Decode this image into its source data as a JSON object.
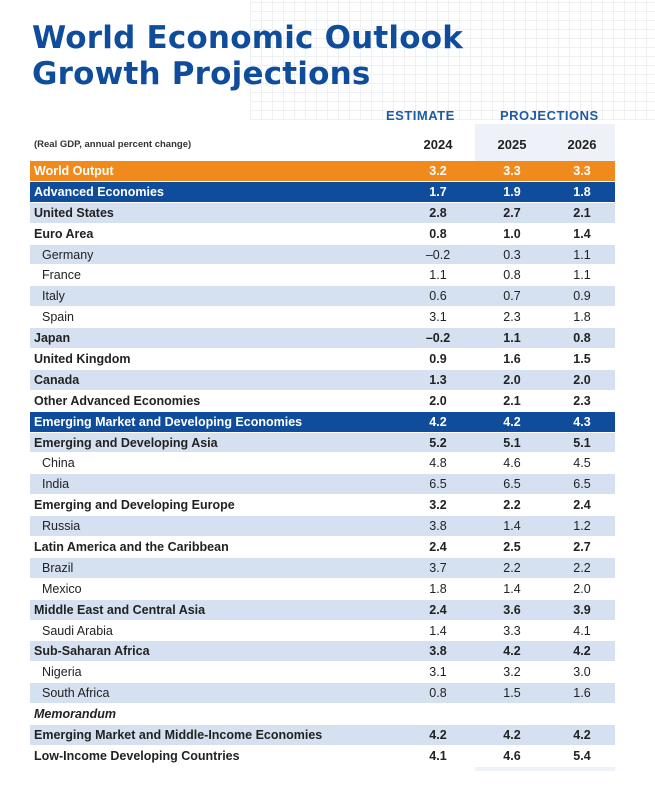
{
  "title": {
    "line1": "World Economic Outlook",
    "line2": "Growth Projections"
  },
  "header": {
    "estimate": "ESTIMATE",
    "projections": "PROJECTIONS",
    "subtitle": "(Real GDP, annual percent change)",
    "years": [
      "2024",
      "2025",
      "2026"
    ]
  },
  "rows": [
    {
      "label": "World Output",
      "style": "world",
      "values": [
        "3.2",
        "3.3",
        "3.3"
      ]
    },
    {
      "label": "Advanced Economies",
      "style": "group",
      "values": [
        "1.7",
        "1.9",
        "1.8"
      ]
    },
    {
      "label": "United States",
      "style": "light",
      "values": [
        "2.8",
        "2.7",
        "2.1"
      ]
    },
    {
      "label": "Euro Area",
      "style": "white",
      "values": [
        "0.8",
        "1.0",
        "1.4"
      ]
    },
    {
      "label": "Germany",
      "style": "light sub",
      "values": [
        "–0.2",
        "0.3",
        "1.1"
      ]
    },
    {
      "label": "France",
      "style": "white sub",
      "values": [
        "1.1",
        "0.8",
        "1.1"
      ]
    },
    {
      "label": "Italy",
      "style": "light sub",
      "values": [
        "0.6",
        "0.7",
        "0.9"
      ]
    },
    {
      "label": "Spain",
      "style": "white sub",
      "values": [
        "3.1",
        "2.3",
        "1.8"
      ]
    },
    {
      "label": "Japan",
      "style": "light",
      "values": [
        "–0.2",
        "1.1",
        "0.8"
      ]
    },
    {
      "label": "United Kingdom",
      "style": "white",
      "values": [
        "0.9",
        "1.6",
        "1.5"
      ]
    },
    {
      "label": "Canada",
      "style": "light",
      "values": [
        "1.3",
        "2.0",
        "2.0"
      ]
    },
    {
      "label": "Other Advanced Economies",
      "style": "white",
      "values": [
        "2.0",
        "2.1",
        "2.3"
      ]
    },
    {
      "label": "Emerging Market and Developing Economies",
      "style": "group",
      "values": [
        "4.2",
        "4.2",
        "4.3"
      ]
    },
    {
      "label": "Emerging and Developing Asia",
      "style": "light",
      "values": [
        "5.2",
        "5.1",
        "5.1"
      ]
    },
    {
      "label": "China",
      "style": "white sub",
      "values": [
        "4.8",
        "4.6",
        "4.5"
      ]
    },
    {
      "label": "India",
      "style": "light sub",
      "values": [
        "6.5",
        "6.5",
        "6.5"
      ]
    },
    {
      "label": "Emerging and Developing Europe",
      "style": "white",
      "values": [
        "3.2",
        "2.2",
        "2.4"
      ]
    },
    {
      "label": "Russia",
      "style": "light sub",
      "values": [
        "3.8",
        "1.4",
        "1.2"
      ]
    },
    {
      "label": "Latin America and the Caribbean",
      "style": "white",
      "values": [
        "2.4",
        "2.5",
        "2.7"
      ]
    },
    {
      "label": "Brazil",
      "style": "light sub",
      "values": [
        "3.7",
        "2.2",
        "2.2"
      ]
    },
    {
      "label": "Mexico",
      "style": "white sub",
      "values": [
        "1.8",
        "1.4",
        "2.0"
      ]
    },
    {
      "label": "Middle East and Central Asia",
      "style": "light",
      "values": [
        "2.4",
        "3.6",
        "3.9"
      ]
    },
    {
      "label": "Saudi Arabia",
      "style": "white sub",
      "values": [
        "1.4",
        "3.3",
        "4.1"
      ]
    },
    {
      "label": "Sub-Saharan Africa",
      "style": "light",
      "values": [
        "3.8",
        "4.2",
        "4.2"
      ]
    },
    {
      "label": "Nigeria",
      "style": "white sub",
      "values": [
        "3.1",
        "3.2",
        "3.0"
      ]
    },
    {
      "label": "South Africa",
      "style": "light sub",
      "values": [
        "0.8",
        "1.5",
        "1.6"
      ]
    },
    {
      "label": "Memorandum",
      "style": "memo",
      "values": [
        "",
        "",
        ""
      ]
    },
    {
      "label": "Emerging Market and Middle-Income Economies",
      "style": "light",
      "values": [
        "4.2",
        "4.2",
        "4.2"
      ]
    },
    {
      "label": "Low-Income Developing Countries",
      "style": "white",
      "values": [
        "4.1",
        "4.6",
        "5.4"
      ]
    }
  ],
  "colors": {
    "title_blue": "#0f4d9c",
    "world_orange": "#f18a1c",
    "group_blue": "#0f4d9c",
    "row_light": "#d5e0f0"
  }
}
